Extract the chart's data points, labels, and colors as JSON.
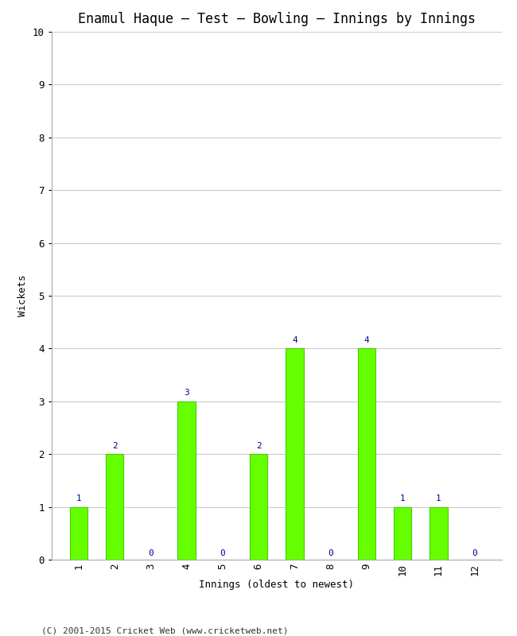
{
  "title": "Enamul Haque – Test – Bowling – Innings by Innings",
  "xlabel": "Innings (oldest to newest)",
  "ylabel": "Wickets",
  "categories": [
    "1",
    "2",
    "3",
    "4",
    "5",
    "6",
    "7",
    "8",
    "9",
    "10",
    "11",
    "12"
  ],
  "values": [
    1,
    2,
    0,
    3,
    0,
    2,
    4,
    0,
    4,
    1,
    1,
    0
  ],
  "bar_color": "#66ff00",
  "bar_edge_color": "#44cc00",
  "label_color": "#000099",
  "ylim": [
    0,
    10
  ],
  "yticks": [
    0,
    1,
    2,
    3,
    4,
    5,
    6,
    7,
    8,
    9,
    10
  ],
  "background_color": "#ffffff",
  "grid_color": "#cccccc",
  "title_fontsize": 12,
  "axis_label_fontsize": 9,
  "tick_fontsize": 9,
  "value_label_fontsize": 8,
  "footer": "(C) 2001-2015 Cricket Web (www.cricketweb.net)",
  "footer_fontsize": 8
}
